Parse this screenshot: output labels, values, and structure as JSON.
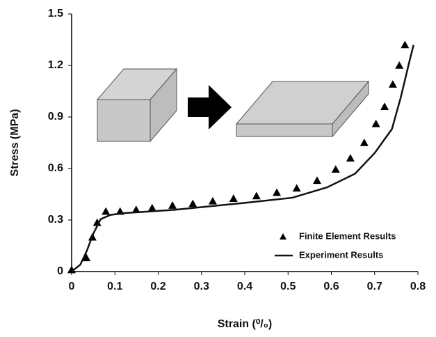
{
  "chart_data": {
    "type": "line",
    "xlabel": "Strain (⁰/₀)",
    "ylabel": "Stress (MPa)",
    "xlim": [
      0,
      0.8
    ],
    "xticks": [
      0,
      0.1,
      0.2,
      0.3,
      0.4,
      0.5,
      0.6,
      0.7,
      0.8
    ],
    "ylim": [
      0,
      1.5
    ],
    "yticks": [
      0,
      0.3,
      0.6,
      0.9,
      1.2,
      1.5
    ],
    "grid": false,
    "legend": "lower right",
    "series": [
      {
        "name": "Finite Element  Results",
        "color": "#000000",
        "marker": "triangle",
        "x": [
          0,
          0.034,
          0.048,
          0.059,
          0.079,
          0.112,
          0.149,
          0.186,
          0.233,
          0.28,
          0.326,
          0.374,
          0.427,
          0.474,
          0.52,
          0.567,
          0.61,
          0.644,
          0.676,
          0.703,
          0.723,
          0.742,
          0.757,
          0.77
        ],
        "values": [
          0.01,
          0.08,
          0.2,
          0.285,
          0.35,
          0.35,
          0.36,
          0.37,
          0.385,
          0.395,
          0.41,
          0.425,
          0.44,
          0.46,
          0.485,
          0.53,
          0.595,
          0.66,
          0.75,
          0.86,
          0.96,
          1.09,
          1.2,
          1.32
        ]
      },
      {
        "name": "Experiment Results",
        "color": "#111111",
        "x": [
          0,
          0.02,
          0.035,
          0.05,
          0.067,
          0.09,
          0.12,
          0.24,
          0.4,
          0.51,
          0.59,
          0.655,
          0.7,
          0.74,
          0.76,
          0.78,
          0.79
        ],
        "values": [
          0,
          0.04,
          0.12,
          0.22,
          0.305,
          0.33,
          0.34,
          0.36,
          0.4,
          0.43,
          0.49,
          0.57,
          0.69,
          0.83,
          1.01,
          1.22,
          1.32
        ]
      }
    ]
  }
}
